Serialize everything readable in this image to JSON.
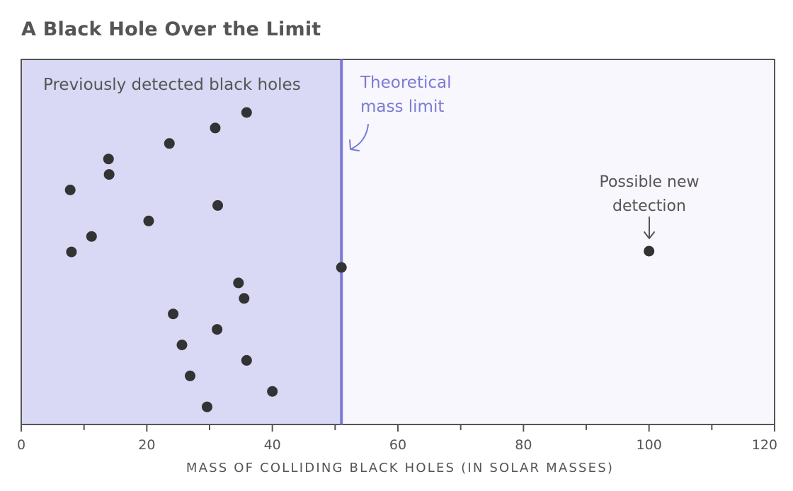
{
  "chart_data": {
    "type": "scatter",
    "title": "A Black Hole Over the Limit",
    "xlabel": "MASS OF COLLIDING BLACK HOLES (IN SOLAR MASSES)",
    "ylabel": "",
    "xlim": [
      0,
      120
    ],
    "xticks": [
      0,
      20,
      40,
      60,
      80,
      100,
      120
    ],
    "xtick_labels": [
      "0",
      "20",
      "40",
      "60",
      "80",
      "100",
      "120"
    ],
    "minor_xticks": [
      10,
      30,
      50,
      70,
      90,
      110
    ],
    "grid": false,
    "mass_limit": 51,
    "shaded_region": {
      "label": "Previously detected black holes",
      "color": "#d9d9f5"
    },
    "unshaded_region_color": "#f7f7fd",
    "limit_line": {
      "x": 51,
      "label_lines": [
        "Theoretical",
        "mass limit"
      ],
      "color": "#7b7bd6"
    },
    "series": [
      {
        "name": "Previously detected black holes",
        "color": "#333333",
        "points": [
          {
            "x": 35.9
          },
          {
            "x": 30.9
          },
          {
            "x": 23.6
          },
          {
            "x": 13.9
          },
          {
            "x": 14.0
          },
          {
            "x": 7.8
          },
          {
            "x": 31.3
          },
          {
            "x": 20.3
          },
          {
            "x": 11.2
          },
          {
            "x": 8.0
          },
          {
            "x": 51.0
          },
          {
            "x": 34.6
          },
          {
            "x": 35.5
          },
          {
            "x": 24.2
          },
          {
            "x": 31.2
          },
          {
            "x": 25.6
          },
          {
            "x": 35.9
          },
          {
            "x": 26.9
          },
          {
            "x": 40.0
          },
          {
            "x": 29.6
          }
        ]
      },
      {
        "name": "Possible new detection",
        "color": "#333333",
        "points": [
          {
            "x": 100.0
          }
        ]
      }
    ],
    "annotations": [
      {
        "text_lines": [
          "Possible new",
          "detection"
        ],
        "target_x": 100
      }
    ]
  }
}
